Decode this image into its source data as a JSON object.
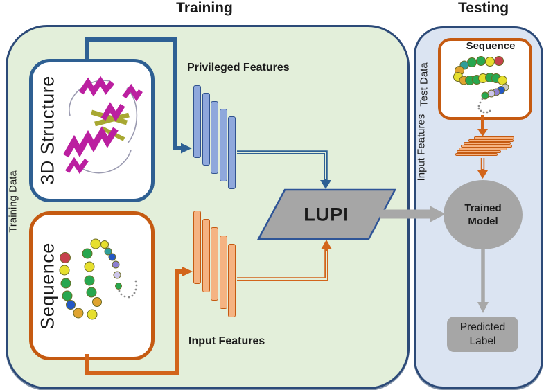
{
  "titles": {
    "training": "Training",
    "testing": "Testing"
  },
  "training": {
    "panel_label": "Training Data",
    "structure_box": {
      "label": "3D Structure"
    },
    "sequence_box": {
      "label": "Sequence"
    },
    "privileged_features_label": "Privileged Features",
    "input_features_label": "Input Features",
    "lupi_label": "LUPI"
  },
  "testing": {
    "panel_label": "Test Data",
    "sequence_box": {
      "label": "Sequence"
    },
    "input_features_label": "Input Features",
    "trained_model_label": "Trained Model",
    "predicted_label": "Predicted Label"
  },
  "colors": {
    "training_panel_fill": "#e3efda",
    "testing_panel_fill": "#dbe4f2",
    "panel_border": "#2c4a78",
    "structure_box_border": "#2e5f92",
    "orange_accent": "#c55a11",
    "orange_line": "#d2641a",
    "blue_line": "#2e6094",
    "node_gray": "#a6a6a6",
    "arrow_gray": "#a8a8a8"
  },
  "figures": {
    "privileged_bars": {
      "count": 5,
      "fill": "#8fa8dc",
      "stroke": "#31538f"
    },
    "input_bars": {
      "count": 5,
      "fill": "#f5b382",
      "stroke": "#c55a11"
    },
    "test_feature_bars": {
      "fill": "#f5b382",
      "stroke": "#c55a11",
      "rows": [
        [
          684,
          58
        ],
        [
          676,
          65
        ],
        [
          669,
          68
        ],
        [
          665,
          74
        ],
        [
          662,
          70
        ],
        [
          659,
          64
        ],
        [
          657,
          61
        ]
      ]
    },
    "training_beads": [
      [
        58,
        17,
        7,
        "#e6df2e"
      ],
      [
        46,
        31,
        7,
        "#28a74f"
      ],
      [
        14,
        37,
        7.5,
        "#c6414c"
      ],
      [
        13,
        55,
        7,
        "#e6df2e"
      ],
      [
        15,
        74,
        7,
        "#28a74f"
      ],
      [
        17,
        92,
        7,
        "#28a74f"
      ],
      [
        22,
        105,
        6.5,
        "#2458c4"
      ],
      [
        33,
        117,
        7,
        "#e0a42f"
      ],
      [
        53,
        119,
        7,
        "#e6df2e"
      ],
      [
        49,
        50,
        7,
        "#e6df2e"
      ],
      [
        49,
        70,
        7,
        "#28a74f"
      ],
      [
        52,
        87,
        7,
        "#28a74f"
      ],
      [
        60,
        101,
        6.5,
        "#e0a42f"
      ],
      [
        71,
        18,
        5.5,
        "#e6df2e"
      ],
      [
        76,
        28,
        5,
        "#2f9e99"
      ],
      [
        82,
        36,
        5,
        "#2458c4"
      ],
      [
        87,
        47,
        5,
        "#8d7fd0"
      ],
      [
        89,
        62,
        5,
        "#cdc6ea"
      ],
      [
        91,
        78,
        4.5,
        "#28a74f"
      ]
    ],
    "training_tail_dots": [
      [
        92,
        85
      ],
      [
        95,
        90
      ],
      [
        100,
        93
      ],
      [
        106,
        94
      ],
      [
        111,
        92
      ],
      [
        114,
        88
      ],
      [
        116,
        83
      ],
      [
        117,
        77
      ],
      [
        116,
        71
      ]
    ],
    "testing_beads": [
      [
        75,
        13,
        6.5,
        "#c6414c"
      ],
      [
        62,
        14,
        6.5,
        "#e6df2e"
      ],
      [
        49,
        13,
        6.5,
        "#28a74f"
      ],
      [
        36,
        15,
        6.5,
        "#28a74f"
      ],
      [
        25,
        19,
        6,
        "#2f9e99"
      ],
      [
        18,
        27,
        6.5,
        "#e0a42f"
      ],
      [
        16,
        36,
        6.5,
        "#e6df2e"
      ],
      [
        24,
        41,
        6,
        "#e0a42f"
      ],
      [
        33,
        41,
        6.5,
        "#28a74f"
      ],
      [
        43,
        40,
        6.5,
        "#28a74f"
      ],
      [
        52,
        38,
        6.5,
        "#e6df2e"
      ],
      [
        62,
        37,
        6.5,
        "#28a74f"
      ],
      [
        71,
        38,
        6.5,
        "#28a74f"
      ],
      [
        80,
        41,
        6.5,
        "#e6df2e"
      ],
      [
        84,
        51,
        5,
        "#c9c9c9"
      ],
      [
        78,
        55,
        5.5,
        "#2458c4"
      ],
      [
        71,
        58,
        5,
        "#8d7fd0"
      ],
      [
        64,
        60,
        5,
        "#cdc6ea"
      ],
      [
        55,
        63,
        5,
        "#28a74f"
      ]
    ],
    "testing_tail_dots": [
      [
        51,
        68
      ],
      [
        48,
        73
      ],
      [
        46,
        78
      ],
      [
        46,
        82
      ],
      [
        49,
        85
      ],
      [
        53,
        87
      ],
      [
        58,
        87
      ],
      [
        62,
        85
      ]
    ]
  }
}
